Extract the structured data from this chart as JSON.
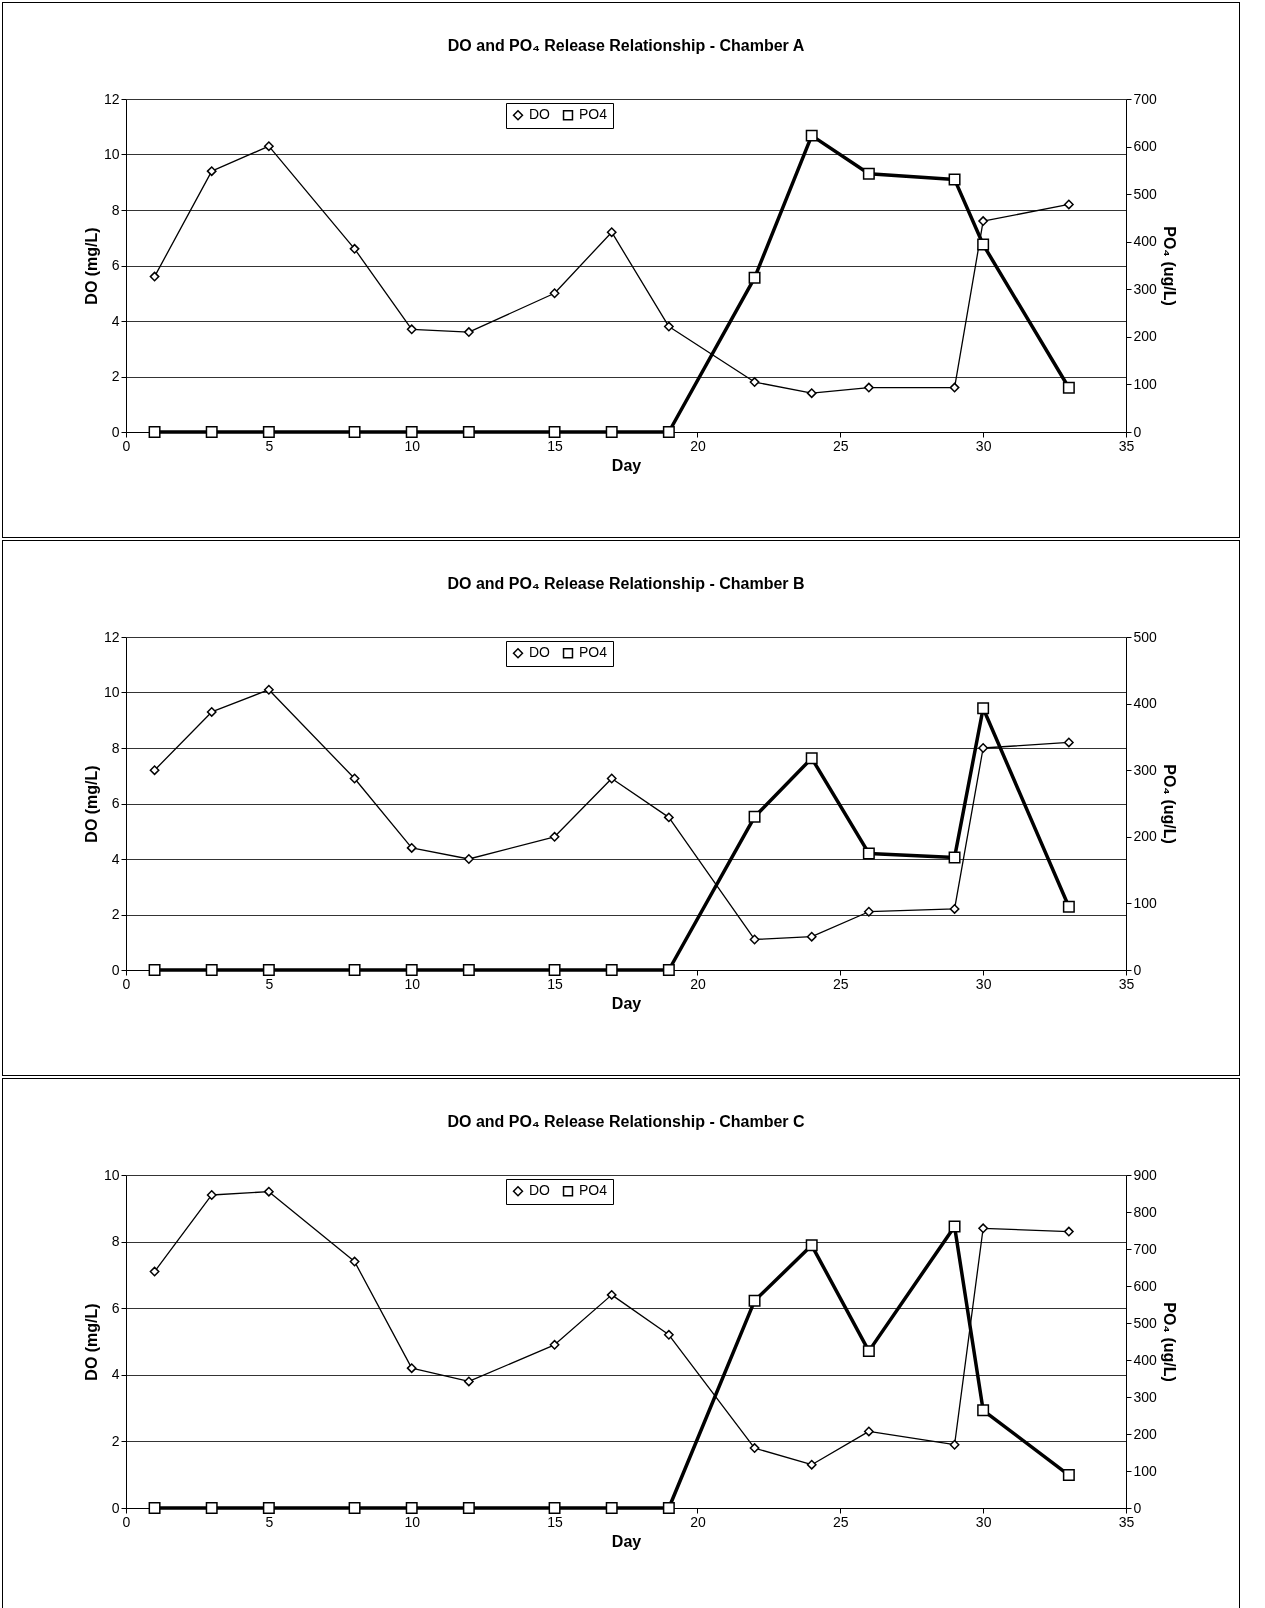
{
  "chart_data": [
    {
      "type": "line",
      "title": "DO and PO₄ Release Relationship - Chamber A",
      "xlabel": "Day",
      "ylabel": "DO (mg/L)",
      "y2label": "PO₄ (ug/L)",
      "x": [
        1,
        3,
        5,
        8,
        10,
        12,
        15,
        17,
        19,
        22,
        24,
        26,
        29,
        30,
        33
      ],
      "series": [
        {
          "name": "DO",
          "color": "#000000",
          "marker": "diamond",
          "values": [
            5.6,
            9.4,
            10.3,
            6.6,
            3.7,
            3.6,
            5.0,
            7.2,
            3.8,
            1.8,
            1.4,
            1.6,
            1.6,
            7.6,
            8.2
          ]
        },
        {
          "name": "PO4",
          "color": "#000000",
          "marker": "square",
          "axis": "y2",
          "values": [
            0,
            0,
            0,
            0,
            0,
            0,
            0,
            0,
            0,
            324,
            623,
            543,
            531,
            394,
            93
          ]
        }
      ],
      "xlim": [
        0,
        35
      ],
      "xticks": [
        0,
        5,
        10,
        15,
        20,
        25,
        30,
        35
      ],
      "ylim": [
        0,
        12
      ],
      "yticks": [
        0,
        2,
        4,
        6,
        8,
        10,
        12
      ],
      "y2lim": [
        0,
        700
      ],
      "y2ticks": [
        0,
        100,
        200,
        300,
        400,
        500,
        600,
        700
      ],
      "grid": "y",
      "legend": "top"
    },
    {
      "type": "line",
      "title": "DO and PO₄ Release Relationship - Chamber B",
      "xlabel": "Day",
      "ylabel": "DO (mg/L)",
      "y2label": "PO₄ (ug/L)",
      "x": [
        1,
        3,
        5,
        8,
        10,
        12,
        15,
        17,
        19,
        22,
        24,
        26,
        29,
        30,
        33
      ],
      "series": [
        {
          "name": "DO",
          "color": "#000000",
          "marker": "diamond",
          "values": [
            7.2,
            9.3,
            10.1,
            6.9,
            4.4,
            4.0,
            4.8,
            6.9,
            5.5,
            1.1,
            1.2,
            2.1,
            2.2,
            8.0,
            8.2
          ]
        },
        {
          "name": "PO4",
          "color": "#000000",
          "marker": "square",
          "axis": "y2",
          "values": [
            0,
            0,
            0,
            0,
            0,
            0,
            0,
            0,
            0,
            230,
            318,
            175,
            169,
            393,
            95
          ]
        }
      ],
      "xlim": [
        0,
        35
      ],
      "xticks": [
        0,
        5,
        10,
        15,
        20,
        25,
        30,
        35
      ],
      "ylim": [
        0,
        12
      ],
      "yticks": [
        0,
        2,
        4,
        6,
        8,
        10,
        12
      ],
      "y2lim": [
        0,
        500
      ],
      "y2ticks": [
        0,
        100,
        200,
        300,
        400,
        500
      ],
      "grid": "y",
      "legend": "top"
    },
    {
      "type": "line",
      "title": "DO and PO₄ Release Relationship - Chamber C",
      "xlabel": "Day",
      "ylabel": "DO (mg/L)",
      "y2label": "PO₄ (ug/L)",
      "x": [
        1,
        3,
        5,
        8,
        10,
        12,
        15,
        17,
        19,
        22,
        24,
        26,
        29,
        30,
        33
      ],
      "series": [
        {
          "name": "DO",
          "color": "#000000",
          "marker": "diamond",
          "values": [
            7.1,
            9.4,
            9.5,
            7.4,
            4.2,
            3.8,
            4.9,
            6.4,
            5.2,
            1.8,
            1.3,
            2.3,
            1.9,
            8.4,
            8.3
          ]
        },
        {
          "name": "PO4",
          "color": "#000000",
          "marker": "square",
          "axis": "y2",
          "values": [
            0,
            0,
            0,
            0,
            0,
            0,
            0,
            0,
            0,
            560,
            710,
            424,
            761,
            264,
            89
          ]
        }
      ],
      "xlim": [
        0,
        35
      ],
      "xticks": [
        0,
        5,
        10,
        15,
        20,
        25,
        30,
        35
      ],
      "ylim": [
        0,
        10
      ],
      "yticks": [
        0,
        2,
        4,
        6,
        8,
        10
      ],
      "y2lim": [
        0,
        900
      ],
      "y2ticks": [
        0,
        100,
        200,
        300,
        400,
        500,
        600,
        700,
        800,
        900
      ],
      "grid": "y",
      "legend": "top"
    }
  ]
}
